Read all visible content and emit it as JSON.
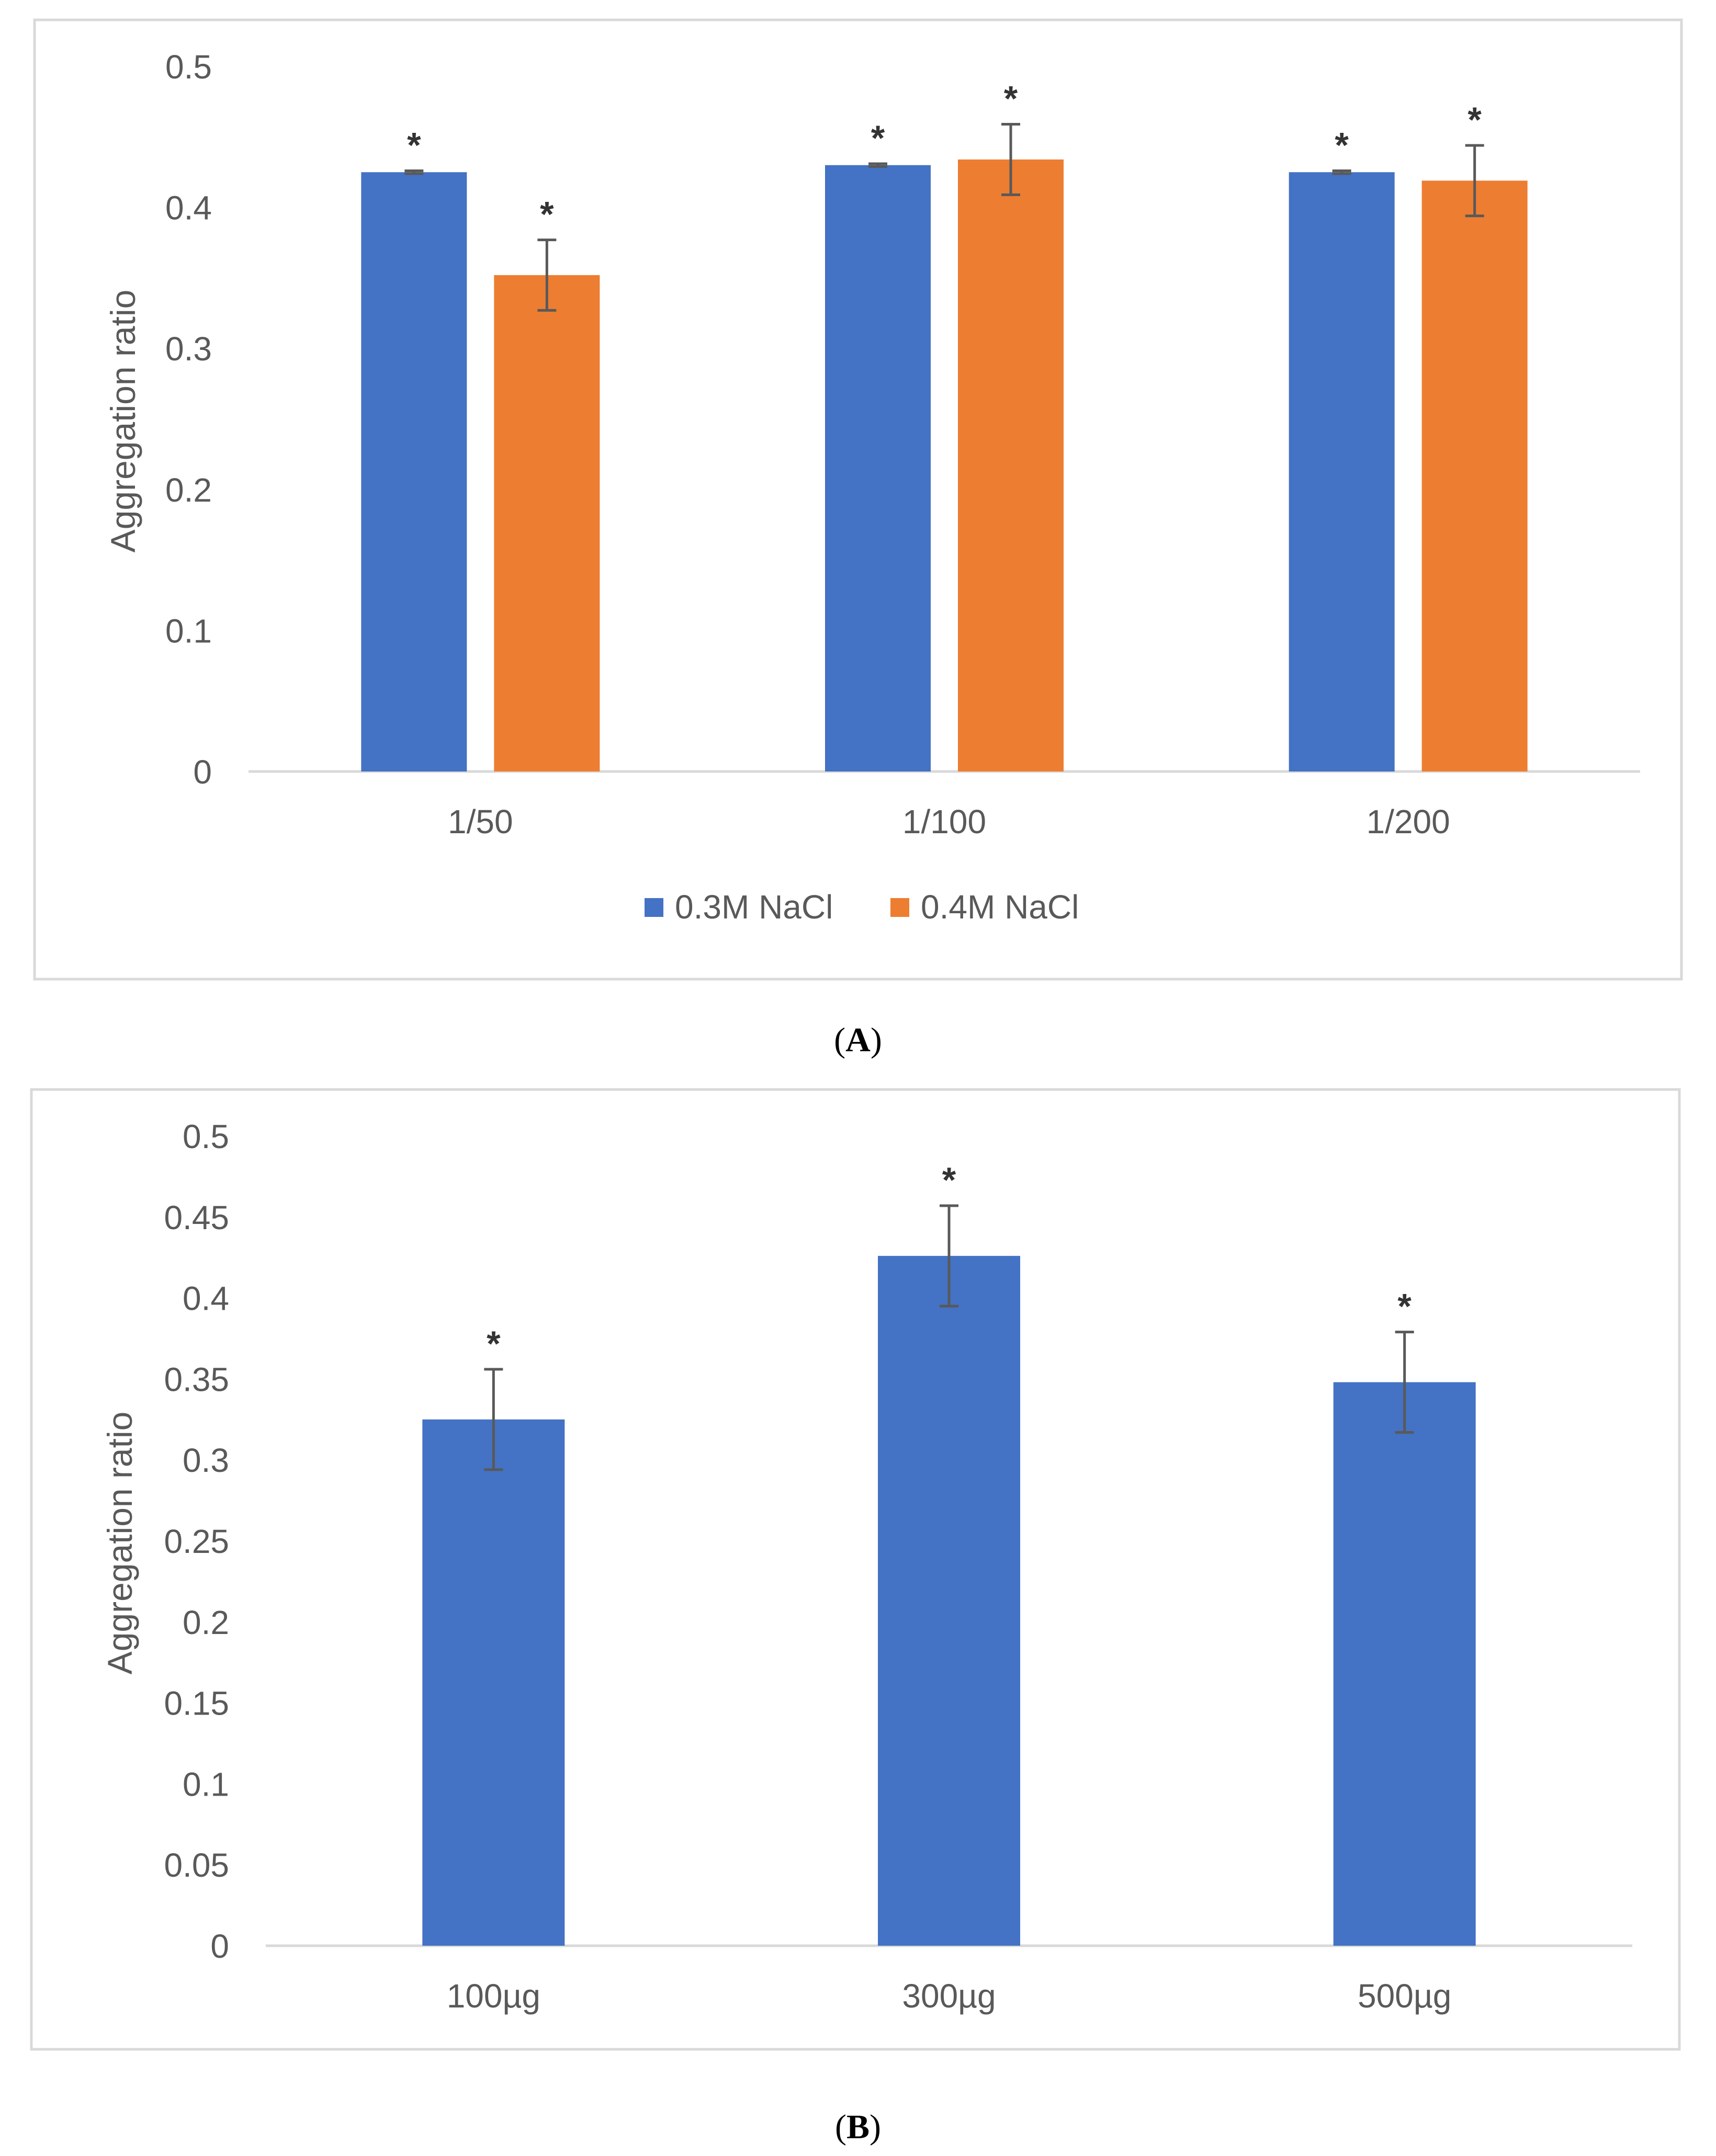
{
  "chart_data": [
    {
      "type": "bar",
      "panel_label": "A",
      "categories": [
        "1/50",
        "1/100",
        "1/200"
      ],
      "series": [
        {
          "name": "0.3M NaCl",
          "color": "#4472C4",
          "values": [
            0.425,
            0.43,
            0.425
          ],
          "errors": [
            0.001,
            0.001,
            0.001
          ],
          "markers": [
            "*",
            "*",
            "*"
          ]
        },
        {
          "name": "0.4M NaCl",
          "color": "#ED7D31",
          "values": [
            0.352,
            0.434,
            0.419
          ],
          "errors": [
            0.025,
            0.025,
            0.025
          ],
          "markers": [
            "*",
            "*",
            "*"
          ]
        }
      ],
      "ylabel": "Aggregation ratio",
      "xlabel": "",
      "ylim": [
        0,
        0.5
      ],
      "yticks": [
        0,
        0.1,
        0.2,
        0.3,
        0.4,
        0.5
      ],
      "ytick_labels": [
        "0",
        "0.1",
        "0.2",
        "0.3",
        "0.4",
        "0.5"
      ],
      "legend_position": "bottom",
      "grid": false
    },
    {
      "type": "bar",
      "panel_label": "B",
      "categories": [
        "100µg",
        "300µg",
        "500µg"
      ],
      "series": [
        {
          "name": "",
          "color": "#4472C4",
          "values": [
            0.325,
            0.426,
            0.348
          ],
          "errors": [
            0.031,
            0.031,
            0.031
          ],
          "markers": [
            "*",
            "*",
            "*"
          ]
        }
      ],
      "ylabel": "Aggregation ratio",
      "xlabel": "",
      "ylim": [
        0,
        0.5
      ],
      "yticks": [
        0,
        0.05,
        0.1,
        0.15,
        0.2,
        0.25,
        0.3,
        0.35,
        0.4,
        0.45,
        0.5
      ],
      "ytick_labels": [
        "0",
        "0.05",
        "0.1",
        "0.15",
        "0.2",
        "0.25",
        "0.3",
        "0.35",
        "0.4",
        "0.45",
        "0.5"
      ],
      "legend_position": "none",
      "grid": false
    }
  ],
  "captions": {
    "a_open": "(",
    "a_letter": "A",
    "a_close": ")",
    "b_open": "(",
    "b_letter": "B",
    "b_close": ")"
  }
}
